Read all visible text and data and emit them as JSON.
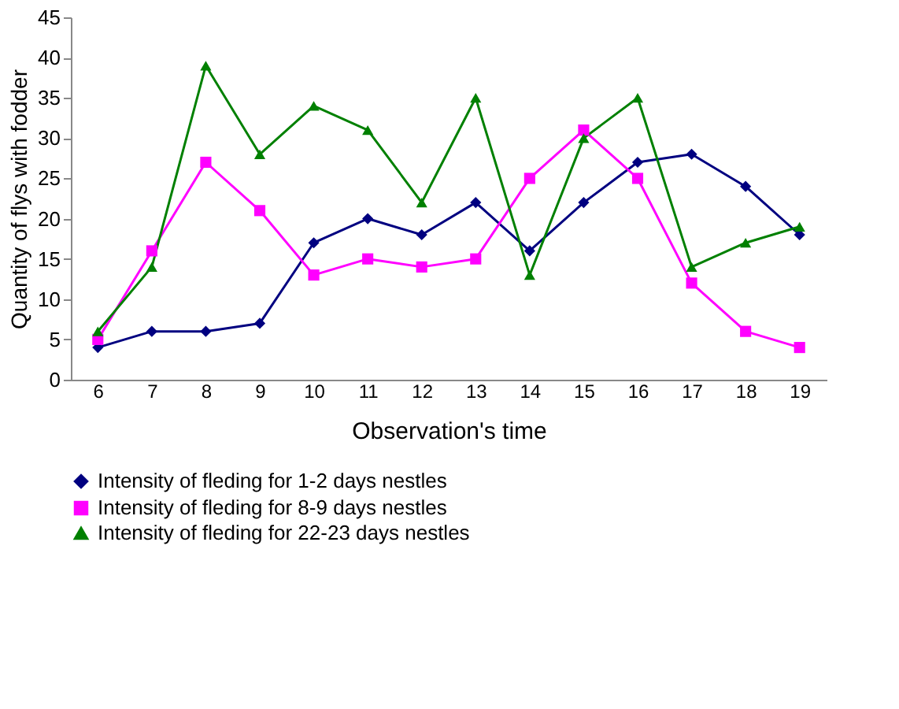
{
  "chart_data": {
    "type": "line",
    "xlabel": "Observation's time",
    "ylabel": "Quantity of flys with fodder",
    "categories": [
      "6",
      "7",
      "8",
      "9",
      "10",
      "11",
      "12",
      "13",
      "14",
      "15",
      "16",
      "17",
      "18",
      "19"
    ],
    "ylim": [
      0,
      45
    ],
    "yticks": [
      0,
      5,
      10,
      15,
      20,
      25,
      30,
      35,
      40,
      45
    ],
    "grid": false,
    "legend": "bottom",
    "line_style": "solid",
    "series": [
      {
        "name": "Intensity of fleding for 1-2 days nestles",
        "color": "#000080",
        "marker": "diamond",
        "values": [
          4,
          6,
          6,
          7,
          17,
          20,
          18,
          22,
          16,
          22,
          27,
          28,
          24,
          18
        ]
      },
      {
        "name": "Intensity of fleding for 8-9 days nestles",
        "color": "#ff00ff",
        "marker": "square",
        "values": [
          5,
          16,
          27,
          21,
          13,
          15,
          14,
          15,
          25,
          31,
          25,
          12,
          6,
          4
        ]
      },
      {
        "name": "Intensity of fleding for 22-23 days nestles",
        "color": "#008000",
        "marker": "triangle",
        "values": [
          6,
          14,
          39,
          28,
          34,
          31,
          22,
          35,
          13,
          30,
          35,
          14,
          17,
          19
        ]
      }
    ]
  }
}
